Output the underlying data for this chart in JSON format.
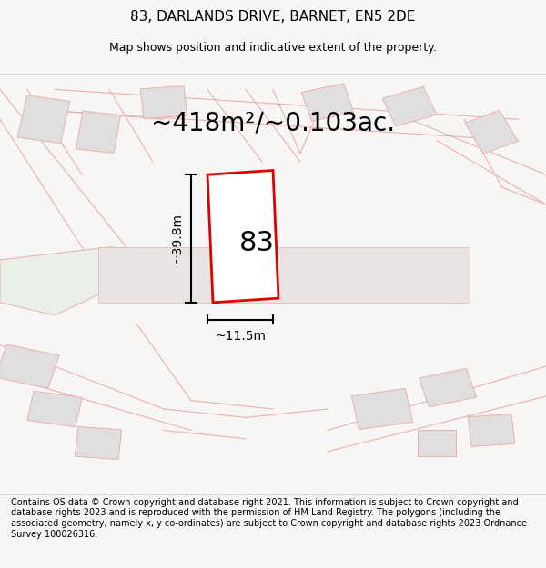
{
  "title": "83, DARLANDS DRIVE, BARNET, EN5 2DE",
  "subtitle": "Map shows position and indicative extent of the property.",
  "area_text": "~418m²/~0.103ac.",
  "width_label": "~11.5m",
  "height_label": "~39.8m",
  "property_number": "83",
  "footer_text": "Contains OS data © Crown copyright and database right 2021. This information is subject to Crown copyright and database rights 2023 and is reproduced with the permission of HM Land Registry. The polygons (including the associated geometry, namely x, y co-ordinates) are subject to Crown copyright and database rights 2023 Ordnance Survey 100026316.",
  "bg_color": "#f5f0f0",
  "map_bg": "#ffffff",
  "property_fill": "#ffffff",
  "property_edge": "#dd0000",
  "road_color": "#e8b0b0",
  "building_color": "#e0dede",
  "green_color": "#e8f0e8",
  "title_fontsize": 11,
  "subtitle_fontsize": 9,
  "area_fontsize": 20,
  "label_fontsize": 10,
  "number_fontsize": 22,
  "footer_fontsize": 7
}
